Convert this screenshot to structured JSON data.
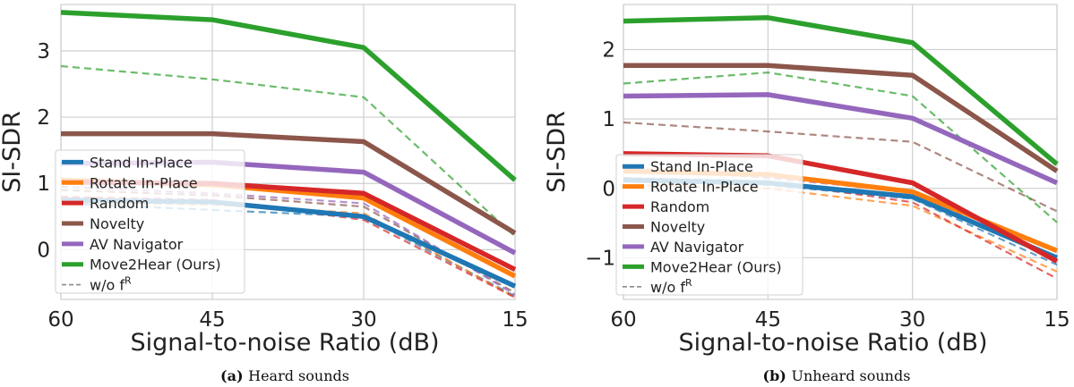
{
  "chart_data": [
    {
      "type": "line",
      "caption_prefix": "(a)",
      "caption_text": "Heard sounds",
      "xlabel": "Signal-to-noise Ratio (dB)",
      "ylabel": "SI-SDR",
      "x": [
        60,
        45,
        30,
        15
      ],
      "xticks": [
        "60",
        "45",
        "30",
        "15"
      ],
      "yticks": [
        "0",
        "1",
        "2",
        "3"
      ],
      "ylim": [
        -0.75,
        3.7
      ],
      "grid": true,
      "legend_position": "lower-left",
      "legend": [
        "Stand In-Place",
        "Rotate In-Place",
        "Random",
        "Novelty",
        "AV Navigator",
        "Move2Hear (Ours)"
      ],
      "legend_dashed_label": "w/o f",
      "legend_dashed_sup": "R",
      "series": [
        {
          "name": "Stand In-Place",
          "color": "#1f77b4",
          "values": [
            0.75,
            0.72,
            0.5,
            -0.55
          ],
          "ablation": [
            0.7,
            0.6,
            0.5,
            -0.7
          ]
        },
        {
          "name": "Rotate In-Place",
          "color": "#ff7f0e",
          "values": [
            1.05,
            0.98,
            0.78,
            -0.4
          ],
          "ablation": [
            0.72,
            0.68,
            0.55,
            -0.72
          ]
        },
        {
          "name": "Random",
          "color": "#d62728",
          "values": [
            1.02,
            1.0,
            0.85,
            -0.3
          ],
          "ablation": [
            0.8,
            0.75,
            0.45,
            -0.72
          ]
        },
        {
          "name": "Novelty",
          "color": "#8c564b",
          "values": [
            1.75,
            1.75,
            1.63,
            0.25
          ],
          "ablation": [
            0.9,
            0.82,
            0.65,
            -0.65
          ]
        },
        {
          "name": "AV Navigator",
          "color": "#9467bd",
          "values": [
            1.3,
            1.32,
            1.17,
            -0.05
          ],
          "ablation": [
            0.95,
            0.85,
            0.7,
            -0.68
          ]
        },
        {
          "name": "Move2Hear (Ours)",
          "color": "#2ca02c",
          "values": [
            3.58,
            3.47,
            3.05,
            1.05
          ],
          "ablation": [
            2.77,
            2.57,
            2.3,
            0.2
          ]
        }
      ]
    },
    {
      "type": "line",
      "caption_prefix": "(b)",
      "caption_text": "Unheard sounds",
      "xlabel": "Signal-to-noise Ratio (dB)",
      "ylabel": "SI-SDR",
      "x": [
        60,
        45,
        30,
        15
      ],
      "xticks": [
        "60",
        "45",
        "30",
        "15"
      ],
      "yticks": [
        "−1",
        "0",
        "1",
        "2"
      ],
      "ylim": [
        -1.6,
        2.65
      ],
      "grid": true,
      "legend_position": "lower-left",
      "legend": [
        "Stand In-Place",
        "Rotate In-Place",
        "Random",
        "Novelty",
        "AV Navigator",
        "Move2Hear (Ours)"
      ],
      "legend_dashed_label": "w/o f",
      "legend_dashed_sup": "R",
      "series": [
        {
          "name": "Stand In-Place",
          "color": "#1f77b4",
          "values": [
            0.12,
            0.08,
            -0.12,
            -1.0
          ],
          "ablation": [
            0.1,
            0.05,
            -0.15,
            -1.1
          ]
        },
        {
          "name": "Rotate In-Place",
          "color": "#ff7f0e",
          "values": [
            0.25,
            0.2,
            -0.05,
            -0.9
          ],
          "ablation": [
            0.05,
            0.0,
            -0.25,
            -1.2
          ]
        },
        {
          "name": "Random",
          "color": "#d62728",
          "values": [
            0.5,
            0.47,
            0.08,
            -1.05
          ],
          "ablation": [
            0.15,
            0.1,
            -0.2,
            -1.3
          ]
        },
        {
          "name": "Novelty",
          "color": "#8c564b",
          "values": [
            1.77,
            1.77,
            1.63,
            0.25
          ],
          "ablation": [
            0.95,
            0.82,
            0.67,
            -0.33
          ]
        },
        {
          "name": "AV Navigator",
          "color": "#9467bd",
          "values": [
            1.33,
            1.35,
            1.01,
            0.08
          ],
          "ablation": [
            0.3,
            0.15,
            -0.05,
            -1.05
          ]
        },
        {
          "name": "Move2Hear (Ours)",
          "color": "#2ca02c",
          "values": [
            2.41,
            2.46,
            2.1,
            0.35
          ],
          "ablation": [
            1.51,
            1.67,
            1.33,
            -0.49
          ]
        }
      ]
    }
  ]
}
